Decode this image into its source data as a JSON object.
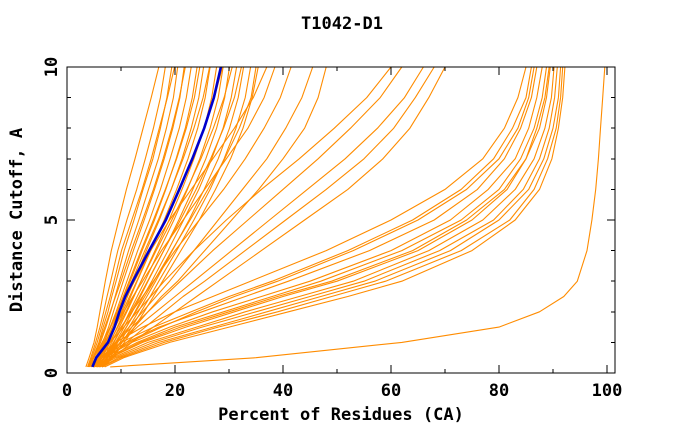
{
  "colors": {
    "background": "#ffffff",
    "axis": "#000000",
    "model_line": "#ff8c00",
    "reference_line": "#0000cd"
  },
  "chart_data": {
    "type": "line",
    "title": "T1042-D1",
    "xlabel": "Percent of Residues (CA)",
    "ylabel": "Distance Cutoff, A",
    "xlim": [
      0,
      101.5
    ],
    "ylim": [
      0,
      10
    ],
    "grid": false,
    "legend": "none",
    "x_ticks_major": [
      0,
      20,
      40,
      60,
      80,
      100
    ],
    "x_ticks_minor": [
      10,
      30,
      50,
      70,
      90
    ],
    "y_ticks_major": [
      0,
      5,
      10
    ],
    "y_ticks_minor": [
      1,
      2,
      3,
      4,
      6,
      7,
      8,
      9
    ],
    "cutoffs": [
      0.2,
      0.5,
      1,
      1.5,
      2,
      2.5,
      3,
      4,
      5,
      6,
      7,
      8,
      9,
      10
    ],
    "reference_series": {
      "name": "reference-model",
      "color": "#0000cd",
      "width": 2.6,
      "percents": [
        4.7,
        5.4,
        7.6,
        8.8,
        9.7,
        10.8,
        12.2,
        15.2,
        18.3,
        20.8,
        23.2,
        25.4,
        27.2,
        28.5
      ]
    },
    "model_series": {
      "name": "server-models",
      "color": "#ff8c00",
      "width": 1.1,
      "percents_per_model": [
        [
          3.5,
          4.1,
          5.0,
          5.6,
          6.1,
          6.6,
          7.1,
          8.2,
          9.6,
          11.0,
          12.6,
          14.1,
          15.6,
          17.0
        ],
        [
          3.8,
          4.4,
          5.3,
          6.1,
          6.8,
          7.4,
          8.1,
          9.4,
          11.1,
          12.9,
          14.5,
          16.0,
          17.3,
          18.2
        ],
        [
          4.0,
          4.8,
          5.9,
          6.7,
          7.6,
          8.3,
          9.1,
          10.6,
          12.4,
          14.1,
          15.9,
          17.3,
          18.5,
          19.4
        ],
        [
          3.9,
          4.6,
          5.6,
          6.4,
          7.2,
          8.0,
          8.7,
          10.1,
          12.0,
          13.9,
          15.6,
          17.1,
          18.6,
          19.9
        ],
        [
          4.2,
          5.0,
          6.2,
          7.2,
          8.1,
          8.9,
          9.7,
          11.4,
          13.3,
          15.1,
          16.9,
          18.4,
          19.7,
          20.5
        ],
        [
          4.4,
          5.3,
          6.6,
          7.7,
          8.6,
          9.5,
          10.4,
          12.3,
          14.3,
          16.2,
          18.0,
          19.6,
          20.9,
          21.7
        ],
        [
          4.1,
          4.9,
          6.0,
          7.0,
          8.0,
          9.0,
          10.0,
          11.9,
          14.0,
          16.0,
          17.8,
          19.4,
          20.8,
          21.9
        ],
        [
          4.7,
          5.6,
          6.9,
          8.0,
          9.1,
          10.1,
          11.1,
          13.1,
          15.3,
          17.3,
          19.1,
          20.8,
          22.1,
          23.0
        ],
        [
          5.0,
          5.9,
          7.2,
          8.4,
          9.5,
          10.6,
          11.7,
          13.9,
          16.2,
          18.3,
          20.2,
          21.9,
          23.2,
          24.1
        ],
        [
          4.6,
          5.5,
          6.8,
          8.1,
          9.3,
          10.4,
          11.5,
          13.7,
          16.0,
          18.2,
          20.3,
          22.1,
          23.6,
          24.6
        ],
        [
          5.2,
          6.2,
          7.6,
          8.9,
          10.1,
          11.2,
          12.4,
          14.7,
          17.1,
          19.3,
          21.3,
          23.0,
          24.4,
          25.3
        ],
        [
          5.4,
          6.5,
          8.0,
          9.3,
          10.6,
          11.8,
          13.0,
          15.5,
          18.0,
          20.3,
          22.4,
          24.2,
          25.6,
          26.5
        ],
        [
          4.9,
          5.8,
          7.1,
          8.4,
          9.6,
          10.8,
          12.0,
          14.4,
          16.9,
          19.3,
          21.5,
          23.5,
          25.2,
          26.4
        ],
        [
          5.6,
          6.8,
          8.3,
          9.7,
          11.1,
          12.4,
          13.7,
          16.3,
          18.9,
          21.3,
          23.5,
          25.4,
          26.8,
          27.7
        ],
        [
          5.8,
          7.0,
          8.7,
          10.2,
          11.6,
          13.0,
          14.4,
          17.1,
          19.8,
          22.3,
          24.6,
          26.5,
          28.0,
          28.9
        ],
        [
          5.1,
          6.1,
          7.5,
          8.9,
          10.3,
          11.6,
          12.9,
          15.5,
          18.2,
          20.8,
          23.2,
          25.4,
          27.3,
          28.8
        ],
        [
          6.0,
          7.3,
          9.0,
          10.6,
          12.1,
          13.6,
          15.0,
          17.9,
          20.7,
          23.3,
          25.7,
          27.7,
          29.2,
          30.1
        ],
        [
          5.3,
          6.4,
          7.9,
          9.4,
          10.9,
          12.3,
          13.7,
          16.5,
          19.4,
          22.2,
          24.8,
          27.1,
          29.1,
          30.6
        ],
        [
          6.2,
          7.6,
          9.4,
          11.0,
          12.6,
          14.1,
          15.7,
          18.7,
          21.6,
          24.4,
          26.8,
          28.9,
          30.4,
          31.4
        ],
        [
          5.7,
          6.9,
          8.6,
          10.2,
          11.8,
          13.4,
          14.9,
          17.9,
          21.0,
          23.9,
          26.6,
          29.0,
          31.0,
          32.3
        ],
        [
          6.4,
          7.9,
          9.8,
          11.5,
          13.2,
          14.8,
          16.4,
          19.5,
          22.6,
          25.4,
          28.0,
          30.1,
          31.7,
          32.7
        ],
        [
          6.6,
          8.2,
          10.2,
          12.0,
          13.7,
          15.4,
          17.0,
          20.3,
          23.5,
          26.5,
          29.1,
          31.3,
          33.0,
          34.0
        ],
        [
          6.1,
          7.4,
          9.2,
          11.0,
          12.7,
          14.4,
          16.1,
          19.4,
          22.8,
          26.1,
          29.2,
          31.9,
          34.1,
          35.0
        ],
        [
          6.8,
          8.5,
          10.6,
          12.5,
          14.3,
          16.0,
          17.7,
          21.1,
          24.5,
          27.5,
          30.3,
          32.6,
          34.3,
          35.4
        ],
        [
          4.0,
          5.0,
          6.5,
          8.0,
          9.5,
          11.0,
          12.5,
          15.5,
          19.0,
          23.0,
          27.0,
          31.0,
          34.5,
          37.0
        ],
        [
          4.5,
          5.5,
          7.0,
          8.8,
          10.5,
          12.2,
          14.0,
          17.5,
          21.5,
          25.5,
          29.5,
          33.5,
          36.5,
          38.5
        ],
        [
          5.0,
          6.0,
          8.0,
          10.0,
          12.0,
          14.0,
          16.0,
          20.0,
          24.5,
          29.0,
          33.0,
          36.5,
          39.5,
          41.5
        ],
        [
          5.5,
          7.0,
          9.0,
          11.5,
          14.0,
          16.5,
          19.0,
          23.5,
          28.0,
          32.5,
          37.0,
          40.5,
          43.5,
          45.5
        ],
        [
          6.0,
          7.5,
          10.0,
          12.5,
          15.0,
          17.5,
          20.5,
          25.5,
          30.5,
          35.5,
          40.0,
          44.0,
          46.5,
          48.0
        ],
        [
          4.5,
          6.0,
          8.0,
          10.5,
          13.0,
          15.5,
          18.0,
          23.5,
          29.5,
          36.0,
          43.0,
          49.5,
          55.5,
          60.0
        ],
        [
          5.0,
          6.5,
          9.0,
          12.0,
          15.0,
          18.0,
          21.0,
          27.0,
          33.5,
          40.0,
          46.5,
          52.5,
          58.0,
          62.0
        ],
        [
          5.5,
          7.0,
          10.0,
          13.0,
          16.5,
          20.0,
          23.5,
          30.5,
          37.5,
          44.5,
          51.5,
          57.5,
          62.5,
          66.0
        ],
        [
          6.0,
          8.0,
          11.0,
          14.5,
          18.0,
          21.5,
          25.5,
          33.0,
          40.5,
          48.0,
          55.0,
          60.5,
          64.5,
          68.0
        ],
        [
          6.5,
          8.5,
          12.0,
          16.0,
          20.0,
          24.0,
          28.0,
          36.0,
          44.0,
          52.0,
          58.5,
          63.5,
          67.0,
          70.0
        ],
        [
          4.0,
          5.5,
          9.0,
          14.0,
          20.0,
          27.0,
          34.0,
          48.0,
          60.0,
          70.0,
          77.0,
          81.0,
          83.5,
          85.0
        ],
        [
          4.5,
          6.0,
          10.0,
          16.0,
          23.0,
          30.0,
          38.0,
          52.0,
          64.0,
          73.0,
          79.0,
          82.5,
          85.0,
          86.0
        ],
        [
          5.0,
          6.5,
          11.0,
          17.0,
          25.0,
          33.0,
          41.0,
          56.0,
          68.0,
          76.0,
          81.0,
          84.0,
          86.0,
          87.0
        ],
        [
          5.0,
          7.0,
          12.0,
          19.0,
          27.0,
          36.0,
          45.0,
          60.0,
          71.0,
          78.0,
          83.0,
          85.5,
          87.0,
          88.0
        ],
        [
          5.5,
          7.5,
          13.0,
          20.0,
          29.0,
          38.0,
          47.0,
          62.0,
          73.0,
          80.0,
          84.0,
          86.5,
          88.0,
          88.8
        ],
        [
          5.5,
          8.0,
          14.0,
          22.0,
          31.0,
          40.0,
          50.0,
          65.0,
          75.0,
          81.5,
          85.0,
          87.5,
          88.8,
          89.5
        ],
        [
          6.0,
          8.5,
          15.0,
          24.0,
          33.0,
          43.0,
          53.0,
          67.0,
          77.0,
          83.0,
          86.5,
          88.5,
          89.7,
          90.2
        ],
        [
          6.0,
          9.0,
          16.0,
          25.0,
          35.0,
          45.0,
          55.0,
          69.0,
          79.0,
          84.5,
          87.5,
          89.3,
          90.3,
          90.8
        ],
        [
          6.5,
          9.5,
          17.0,
          27.0,
          37.0,
          47.0,
          57.0,
          71.0,
          80.0,
          85.5,
          88.3,
          90.0,
          91.0,
          91.4
        ],
        [
          6.5,
          10.0,
          18.0,
          28.0,
          39.0,
          49.0,
          59.0,
          73.0,
          82.0,
          86.5,
          89.0,
          90.6,
          91.4,
          91.8
        ],
        [
          7.0,
          10.5,
          19.0,
          30.0,
          41.0,
          52.0,
          62.0,
          75.0,
          83.0,
          87.5,
          89.8,
          91.0,
          91.8,
          92.2
        ],
        [
          5.0,
          7.0,
          11.5,
          17.5,
          24.0,
          31.0,
          39.0,
          53.0,
          65.0,
          74.0,
          80.0,
          83.5,
          85.5,
          86.5
        ],
        [
          6.0,
          8.0,
          13.5,
          21.0,
          30.0,
          39.0,
          49.0,
          64.0,
          74.0,
          81.0,
          85.0,
          87.0,
          88.5,
          89.3
        ],
        [
          8.0,
          35.0,
          62.0,
          80.0,
          87.5,
          92.0,
          94.5,
          96.3,
          97.2,
          97.9,
          98.4,
          98.8,
          99.2,
          99.6
        ]
      ]
    }
  }
}
